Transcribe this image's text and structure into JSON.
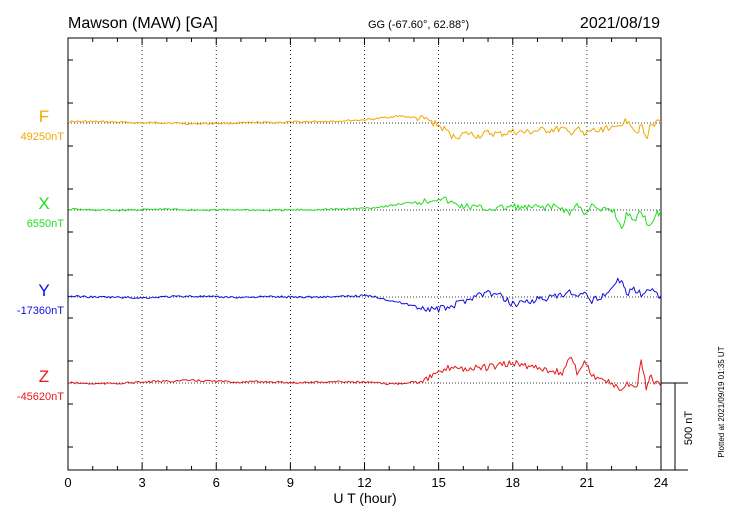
{
  "header": {
    "station": "Mawson (MAW)  [GA]",
    "coords": "GG (-67.60°,  62.88°)",
    "date": "2021/08/19"
  },
  "footer_note": "Plotted at 2021/09/19 01:35 UT",
  "scale_bar": {
    "label": "500 nT",
    "value": 500
  },
  "chart_data": {
    "type": "line",
    "xlabel": "U T (hour)",
    "xlim": [
      0,
      24
    ],
    "xticks": [
      0,
      3,
      6,
      9,
      12,
      15,
      18,
      21,
      24
    ],
    "xtick_labels": [
      "0",
      "3",
      "6",
      "9",
      "12",
      "15",
      "18",
      "21",
      "24"
    ],
    "grid": true,
    "series": [
      {
        "name": "F",
        "baseline_label": "49250nT",
        "baseline": 49250,
        "color": "#f0a800",
        "x": [
          0,
          1,
          2,
          3,
          4,
          5,
          6,
          7,
          8,
          9,
          10,
          11,
          12,
          12.5,
          13,
          13.5,
          14,
          14.5,
          15,
          15.3,
          15.6,
          15.9,
          16.2,
          16.6,
          17,
          17.5,
          18,
          18.5,
          19,
          19.5,
          20,
          20.3,
          20.6,
          20.9,
          21.2,
          21.5,
          21.8,
          22.1,
          22.4,
          22.7,
          23,
          23.2,
          23.4,
          23.6,
          24
        ],
        "y": [
          49258,
          49258,
          49255,
          49250,
          49252,
          49245,
          49248,
          49250,
          49252,
          49255,
          49258,
          49262,
          49268,
          49275,
          49285,
          49290,
          49280,
          49270,
          49235,
          49205,
          49170,
          49180,
          49190,
          49175,
          49192,
          49185,
          49200,
          49195,
          49205,
          49210,
          49215,
          49190,
          49220,
          49175,
          49210,
          49200,
          49230,
          49210,
          49250,
          49270,
          49195,
          49240,
          49155,
          49245,
          49255
        ]
      },
      {
        "name": "X",
        "baseline_label": "6550nT",
        "baseline": 6550,
        "color": "#22dd22",
        "x": [
          0,
          1,
          2,
          3,
          4,
          5,
          6,
          7,
          8,
          9,
          10,
          11,
          12,
          12.5,
          13,
          13.5,
          14,
          14.5,
          15,
          15.3,
          15.6,
          16,
          16.5,
          17,
          17.5,
          18,
          18.5,
          19,
          19.5,
          20,
          20.3,
          20.6,
          20.9,
          21.2,
          21.5,
          21.8,
          22.1,
          22.4,
          22.6,
          22.9,
          23.2,
          23.5,
          23.8,
          24
        ],
        "y": [
          6555,
          6550,
          6548,
          6552,
          6555,
          6550,
          6550,
          6552,
          6548,
          6550,
          6552,
          6555,
          6560,
          6565,
          6575,
          6585,
          6595,
          6600,
          6620,
          6605,
          6585,
          6570,
          6565,
          6555,
          6560,
          6570,
          6560,
          6565,
          6570,
          6560,
          6530,
          6580,
          6535,
          6575,
          6540,
          6555,
          6545,
          6440,
          6525,
          6490,
          6545,
          6460,
          6525,
          6540
        ]
      },
      {
        "name": "Y",
        "baseline_label": "-17360nT",
        "baseline": -17360,
        "color": "#1010dd",
        "x": [
          0,
          1,
          2,
          3,
          4,
          5,
          6,
          7,
          8,
          9,
          10,
          11,
          12,
          12.5,
          13,
          13.5,
          14,
          14.5,
          15,
          15.5,
          16,
          16.5,
          17,
          17.5,
          18,
          18.5,
          19,
          19.5,
          20,
          20.3,
          20.6,
          20.9,
          21.2,
          21.5,
          21.8,
          22.1,
          22.4,
          22.6,
          22.9,
          23.2,
          23.5,
          23.8,
          24
        ],
        "y": [
          -17355,
          -17360,
          -17362,
          -17365,
          -17358,
          -17355,
          -17360,
          -17362,
          -17358,
          -17360,
          -17360,
          -17358,
          -17352,
          -17360,
          -17378,
          -17395,
          -17410,
          -17425,
          -17432,
          -17415,
          -17385,
          -17350,
          -17335,
          -17355,
          -17400,
          -17385,
          -17375,
          -17365,
          -17355,
          -17330,
          -17370,
          -17345,
          -17380,
          -17360,
          -17335,
          -17295,
          -17250,
          -17340,
          -17310,
          -17345,
          -17310,
          -17340,
          -17350
        ]
      },
      {
        "name": "Z",
        "baseline_label": "-45620nT",
        "baseline": -45620,
        "color": "#e81818",
        "x": [
          0,
          1,
          2,
          3,
          4,
          5,
          6,
          7,
          8,
          9,
          10,
          11,
          12,
          12.5,
          13,
          13.5,
          14,
          14.5,
          15,
          15.3,
          15.6,
          16,
          16.5,
          17,
          17.5,
          18,
          18.5,
          19,
          19.5,
          20,
          20.3,
          20.6,
          20.9,
          21.2,
          21.5,
          21.8,
          22.1,
          22.4,
          22.7,
          23,
          23.2,
          23.4,
          23.6,
          24
        ],
        "y": [
          -45618,
          -45625,
          -45622,
          -45615,
          -45610,
          -45605,
          -45610,
          -45615,
          -45612,
          -45618,
          -45615,
          -45612,
          -45615,
          -45620,
          -45625,
          -45622,
          -45612,
          -45595,
          -45565,
          -45545,
          -45520,
          -45540,
          -45535,
          -45530,
          -45520,
          -45505,
          -45520,
          -45530,
          -45545,
          -45565,
          -45470,
          -45555,
          -45490,
          -45575,
          -45590,
          -45610,
          -45640,
          -45665,
          -45620,
          -45655,
          -45505,
          -45640,
          -45590,
          -45640
        ]
      }
    ]
  }
}
